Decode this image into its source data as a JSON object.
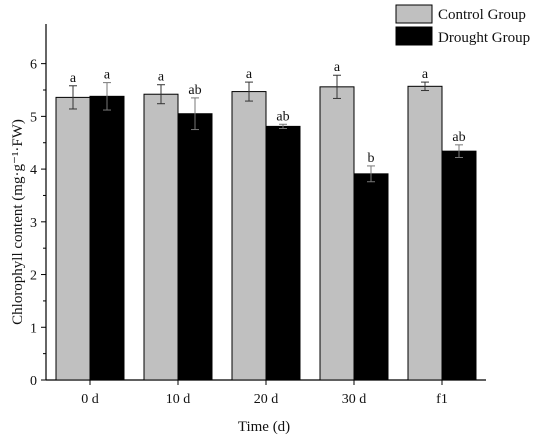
{
  "chart_data": {
    "type": "bar",
    "categories": [
      "0 d",
      "10 d",
      "20 d",
      "30 d",
      "f1"
    ],
    "series": [
      {
        "name": "Control Group",
        "values": [
          5.36,
          5.42,
          5.47,
          5.56,
          5.57
        ],
        "errors": [
          0.22,
          0.18,
          0.18,
          0.22,
          0.08
        ],
        "labels": [
          "a",
          "a",
          "a",
          "a",
          "a"
        ],
        "color": "#c0c0c0"
      },
      {
        "name": "Drought Group",
        "values": [
          5.38,
          5.05,
          4.81,
          3.91,
          4.34
        ],
        "errors": [
          0.26,
          0.3,
          0.04,
          0.15,
          0.12
        ],
        "labels": [
          "a",
          "ab",
          "ab",
          "b",
          "ab"
        ],
        "color": "#000000"
      }
    ],
    "xlabel": "Time (d)",
    "ylabel": "Chlorophyll content (mg·g⁻¹·FW)",
    "ylim": [
      0,
      6.6
    ],
    "yticks": [
      "0",
      "1",
      "2",
      "3",
      "4",
      "5",
      "6"
    ],
    "legend_position": "top-right",
    "grid": false
  }
}
